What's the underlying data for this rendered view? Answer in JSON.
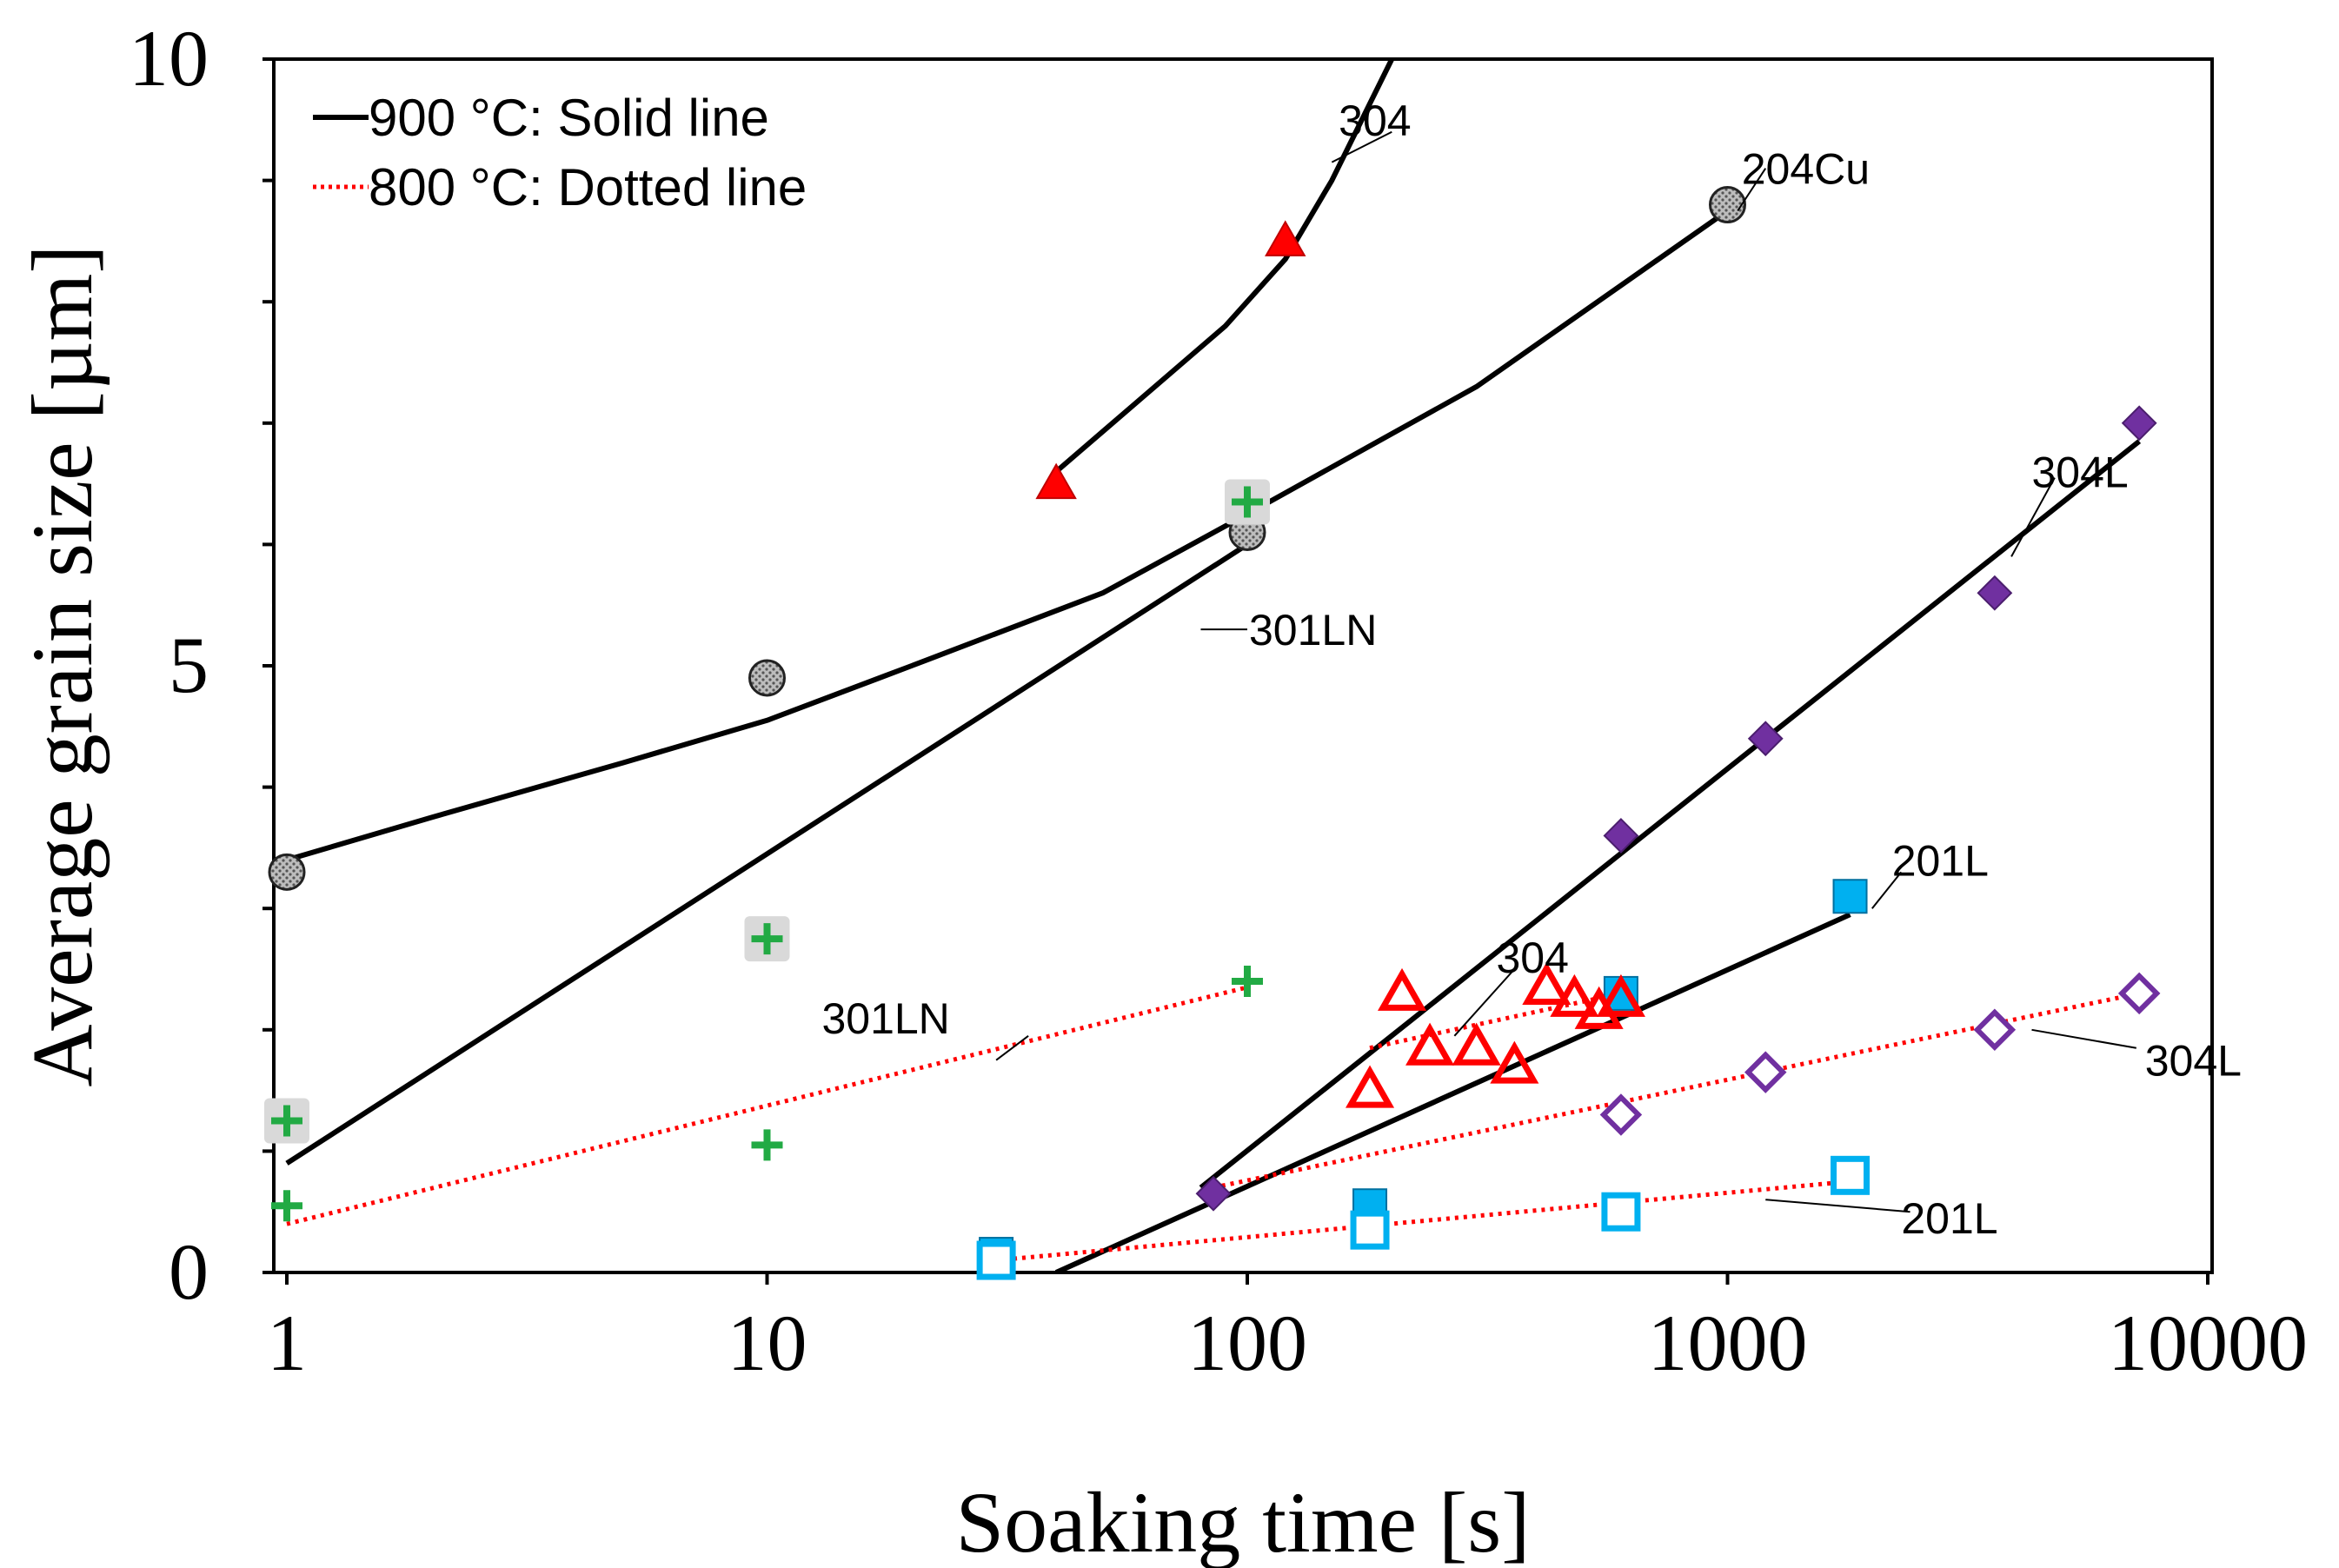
{
  "chart_data": {
    "type": "scatter",
    "xlabel": "Soaking time [s]",
    "ylabel": "Average grain size [µm]",
    "xscale": "log",
    "xlim": [
      1,
      10000
    ],
    "ylim": [
      0,
      10
    ],
    "xticks": [
      1,
      10,
      100,
      1000,
      10000
    ],
    "xtick_labels": [
      "1",
      "10",
      "100",
      "1000",
      "10000"
    ],
    "yticks": [
      0,
      5,
      10
    ],
    "ytick_labels": [
      "0",
      "5",
      "10"
    ],
    "legend": {
      "placement": "top-left",
      "entries": [
        {
          "label": "900 °C: Solid line",
          "style": "solid",
          "color": "#000000"
        },
        {
          "label": "800 °C: Dotted line",
          "style": "dotted",
          "color": "#ff0000"
        }
      ]
    },
    "series": [
      {
        "name": "304 (900 °C)",
        "marker": "triangle-filled",
        "color": "#ff0000",
        "points": [
          [
            40,
            6.5
          ],
          [
            120,
            8.5
          ]
        ]
      },
      {
        "name": "204Cu (900 °C)",
        "marker": "circle-hatched",
        "color": "#808080",
        "points": [
          [
            1,
            3.3
          ],
          [
            10,
            4.9
          ],
          [
            100,
            6.1
          ],
          [
            1000,
            8.8
          ]
        ]
      },
      {
        "name": "301LN (900 °C)",
        "marker": "plus-boxed",
        "color": "#22aa44",
        "points": [
          [
            1,
            1.25
          ],
          [
            10,
            2.75
          ],
          [
            100,
            6.35
          ]
        ]
      },
      {
        "name": "301LN (800 °C)",
        "marker": "plus",
        "color": "#22aa44",
        "points": [
          [
            1,
            0.55
          ],
          [
            10,
            1.05
          ],
          [
            100,
            2.4
          ]
        ]
      },
      {
        "name": "304L (900 °C)",
        "marker": "diamond-filled",
        "color": "#7030a0",
        "points": [
          [
            85,
            0.65
          ],
          [
            600,
            3.6
          ],
          [
            1200,
            4.4
          ],
          [
            3600,
            5.6
          ],
          [
            7200,
            7.0
          ]
        ]
      },
      {
        "name": "304L (800 °C)",
        "marker": "diamond-open",
        "color": "#7030a0",
        "points": [
          [
            600,
            1.3
          ],
          [
            1200,
            1.65
          ],
          [
            3600,
            2.0
          ],
          [
            7200,
            2.3
          ]
        ]
      },
      {
        "name": "201L (900 °C)",
        "marker": "square-filled",
        "color": "#00b0f0",
        "points": [
          [
            30,
            0.15
          ],
          [
            180,
            0.55
          ],
          [
            600,
            2.3
          ],
          [
            1800,
            3.1
          ]
        ]
      },
      {
        "name": "201L (800 °C)",
        "marker": "square-open",
        "color": "#00b0f0",
        "points": [
          [
            30,
            0.1
          ],
          [
            180,
            0.35
          ],
          [
            600,
            0.5
          ],
          [
            1800,
            0.8
          ]
        ]
      },
      {
        "name": "304 (800 °C)",
        "marker": "triangle-open",
        "color": "#ff0000",
        "points": [
          [
            180,
            1.5
          ],
          [
            210,
            2.3
          ],
          [
            240,
            1.85
          ],
          [
            300,
            1.85
          ],
          [
            360,
            1.7
          ],
          [
            420,
            2.35
          ],
          [
            480,
            2.25
          ],
          [
            540,
            2.15
          ],
          [
            600,
            2.25
          ]
        ]
      }
    ],
    "fit_lines": [
      {
        "name": "304 900 fit",
        "style": "solid",
        "color": "#000000",
        "points": [
          [
            40,
            6.6
          ],
          [
            60,
            7.2
          ],
          [
            90,
            7.8
          ],
          [
            120,
            8.35
          ],
          [
            150,
            9.0
          ],
          [
            200,
            10.0
          ]
        ]
      },
      {
        "name": "204Cu 900 fit",
        "style": "solid",
        "color": "#000000",
        "points": [
          [
            1,
            3.4
          ],
          [
            2,
            3.75
          ],
          [
            5,
            4.2
          ],
          [
            10,
            4.55
          ],
          [
            20,
            5.0
          ],
          [
            50,
            5.6
          ],
          [
            100,
            6.25
          ],
          [
            300,
            7.3
          ],
          [
            1000,
            8.75
          ]
        ]
      },
      {
        "name": "301LN 900 fit",
        "style": "solid",
        "color": "#000000",
        "points": [
          [
            1,
            0.9
          ],
          [
            100,
            6.0
          ]
        ]
      },
      {
        "name": "301LN 800 fit",
        "style": "dotted",
        "color": "#ff0000",
        "points": [
          [
            1,
            0.4
          ],
          [
            100,
            2.35
          ]
        ]
      },
      {
        "name": "304L 900 fit",
        "style": "solid",
        "color": "#000000",
        "points": [
          [
            80,
            0.7
          ],
          [
            7200,
            6.85
          ]
        ]
      },
      {
        "name": "201L 900 fit",
        "style": "solid",
        "color": "#000000",
        "points": [
          [
            40,
            0.0
          ],
          [
            1800,
            2.95
          ]
        ]
      },
      {
        "name": "201L 800 fit",
        "style": "dotted",
        "color": "#ff0000",
        "points": [
          [
            30,
            0.1
          ],
          [
            1800,
            0.75
          ]
        ]
      },
      {
        "name": "304L 800 fit",
        "style": "dotted",
        "color": "#ff0000",
        "points": [
          [
            85,
            0.7
          ],
          [
            7200,
            2.3
          ]
        ]
      },
      {
        "name": "304 800 fit",
        "style": "dotted",
        "color": "#ff0000",
        "points": [
          [
            180,
            1.85
          ],
          [
            600,
            2.3
          ]
        ]
      }
    ],
    "annotations": [
      {
        "text": "304",
        "label_at": [
          155,
          9.5
        ],
        "anchor": "start",
        "leader_from": [
          200,
          9.4
        ],
        "leader_to": [
          150,
          9.15
        ]
      },
      {
        "text": "204Cu",
        "label_at": [
          1070,
          9.1
        ],
        "anchor": "start",
        "leader_from": [
          1200,
          9.1
        ],
        "leader_to": [
          1050,
          8.75
        ]
      },
      {
        "text": "304L",
        "label_at": [
          4300,
          6.6
        ],
        "anchor": "start",
        "leader_from": [
          4800,
          6.55
        ],
        "leader_to": [
          3900,
          5.9
        ]
      },
      {
        "text": "301LN",
        "label_at": [
          1,
          5.2
        ],
        "anchor": "start",
        "label_offset_x": 0,
        "x_is_pixel_offset": false,
        "leader_from": [
          100,
          5.3
        ],
        "leader_to": [
          80,
          5.3
        ]
      },
      {
        "text": "201L",
        "label_at": [
          2200,
          3.4
        ],
        "anchor": "start",
        "leader_from": [
          2300,
          3.3
        ],
        "leader_to": [
          2000,
          3.0
        ]
      },
      {
        "text": "304",
        "label_at": [
          330,
          2.6
        ],
        "anchor": "start",
        "leader_from": [
          360,
          2.5
        ],
        "leader_to": [
          270,
          1.95
        ]
      },
      {
        "text": "301LN",
        "label_at": [
          13,
          2.1
        ],
        "anchor": "start",
        "leader_from": [
          35,
          1.95
        ],
        "leader_to": [
          30,
          1.75
        ]
      },
      {
        "text": "304L",
        "label_at": [
          7400,
          1.75
        ],
        "anchor": "start",
        "leader_from": [
          7100,
          1.85
        ],
        "leader_to": [
          4300,
          2.0
        ]
      },
      {
        "text": "201L",
        "label_at": [
          2300,
          0.45
        ],
        "anchor": "start",
        "leader_from": [
          2400,
          0.5
        ],
        "leader_to": [
          1200,
          0.6
        ]
      }
    ]
  }
}
